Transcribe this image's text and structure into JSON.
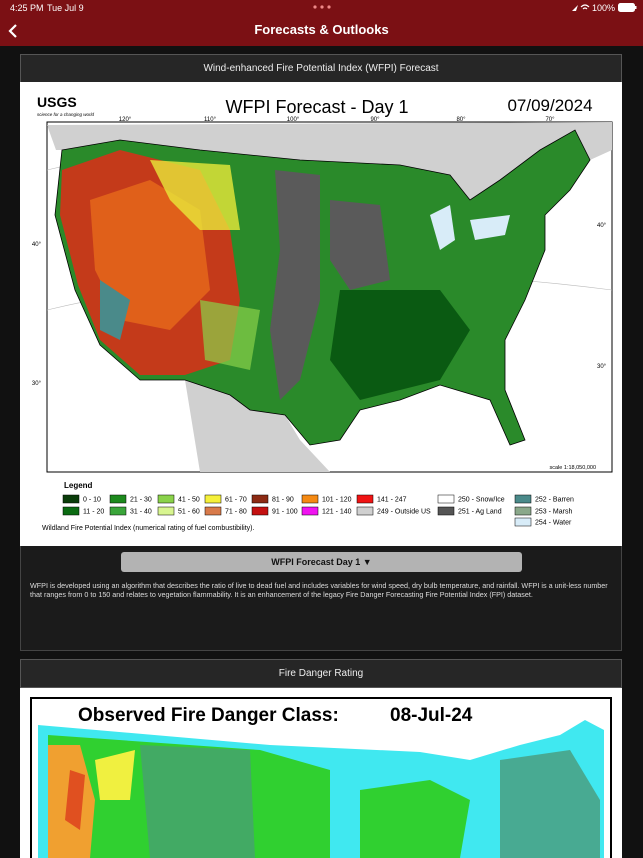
{
  "status_bar": {
    "time": "4:25 PM",
    "date": "Tue Jul 9",
    "battery": "100%"
  },
  "nav": {
    "title": "Forecasts & Outlooks"
  },
  "wfpi_card": {
    "header": "Wind-enhanced Fire Potential Index (WFPI) Forecast",
    "image": {
      "logo": "USGS",
      "logo_tagline": "science for a changing world",
      "title": "WFPI Forecast - Day 1",
      "date": "07/09/2024",
      "lon_labels": [
        "120°",
        "110°",
        "100°",
        "90°",
        "80°",
        "70°"
      ],
      "lat_labels": [
        "40°",
        "30°",
        "40°",
        "30°"
      ],
      "scale": "scale 1:18,050,000",
      "legend_title": "Legend",
      "legend": [
        {
          "label": "0 - 10",
          "color": "#0a3d0a"
        },
        {
          "label": "11 - 20",
          "color": "#0b6b12"
        },
        {
          "label": "21 - 30",
          "color": "#1d8a1d"
        },
        {
          "label": "31 - 40",
          "color": "#3aa53a"
        },
        {
          "label": "41 - 50",
          "color": "#8ad24a"
        },
        {
          "label": "51 - 60",
          "color": "#d8f590"
        },
        {
          "label": "61 - 70",
          "color": "#f5f03a"
        },
        {
          "label": "71 - 80",
          "color": "#d87a4a"
        },
        {
          "label": "81 - 90",
          "color": "#8c2a14"
        },
        {
          "label": "91 - 100",
          "color": "#c41010"
        },
        {
          "label": "101 - 120",
          "color": "#f58a14"
        },
        {
          "label": "121 - 140",
          "color": "#f014f0"
        },
        {
          "label": "141 - 247",
          "color": "#f01414"
        },
        {
          "label": "249 - Outside US",
          "color": "#d0d0d0"
        },
        {
          "label": "250 - Snow/Ice",
          "color": "#ffffff"
        },
        {
          "label": "251 - Ag Land",
          "color": "#555555"
        },
        {
          "label": "252 - Barren",
          "color": "#4a8a8a"
        },
        {
          "label": "253 - Marsh",
          "color": "#8aa88a"
        },
        {
          "label": "254 - Water",
          "color": "#d8ecf8"
        }
      ],
      "footnote": "Wildland Fire Potential Index (numerical rating of fuel combustibility)."
    },
    "button": "WFPI Forecast Day 1 ▼",
    "description": "WFPI is developed using an algorithm that describes the ratio of live to dead fuel and includes variables for wind speed, dry bulb temperature, and rainfall. WFPI is a unit-less number that ranges from 0 to 150 and relates to vegetation flammability. It is an enhancement of the legacy Fire Danger Forecasting Fire Potential Index (FPI) dataset."
  },
  "fire_danger_card": {
    "header": "Fire Danger Rating",
    "image": {
      "title": "Observed Fire Danger Class:",
      "date": "08-Jul-24"
    }
  }
}
